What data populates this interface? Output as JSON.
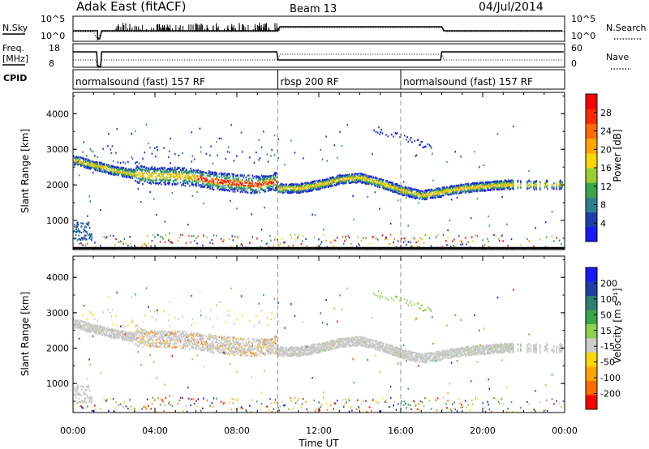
{
  "header": {
    "station": "Adak East (fitACF)",
    "beam": "Beam 13",
    "date": "04/Jul/2014"
  },
  "top_panels": {
    "nsky_label": "N.Sky",
    "nsky_ticks": [
      "10^5",
      "10^0"
    ],
    "nsearch_label": "N.Search",
    "nsearch_ticks": [
      "10^5",
      "10^0"
    ],
    "freq_label": "Freq.",
    "freq_unit": "[MHz]",
    "freq_ticks": [
      "18",
      "8"
    ],
    "nave_label": "Nave",
    "nave_ticks": [
      "60",
      "0"
    ],
    "cpid_label": "CPID"
  },
  "cpid_segments": [
    {
      "label": "normalsound (fast) 157 RF",
      "start_hour": 0,
      "end_hour": 10
    },
    {
      "label": "rbsp 200 RF",
      "start_hour": 10,
      "end_hour": 16
    },
    {
      "label": "normalsound (fast) 157 RF",
      "start_hour": 16,
      "end_hour": 24
    }
  ],
  "chart_data": [
    {
      "type": "heatmap",
      "name": "power",
      "ylabel": "Slant Range [km]",
      "ylim": [
        180,
        4600
      ],
      "yticks": [
        "1000",
        "2000",
        "3000",
        "4000"
      ],
      "xlim": [
        0,
        24
      ],
      "colorbar": {
        "label": "Power [dB]",
        "ticks": [
          "4",
          "8",
          "12",
          "16",
          "20",
          "24",
          "28"
        ],
        "colors": [
          "#1a1aff",
          "#1f3fa8",
          "#2e7f8f",
          "#3aa64a",
          "#9acd32",
          "#ffd700",
          "#ffa500",
          "#ff6a00",
          "#ff2a00",
          "#ff0000"
        ]
      },
      "main_band": [
        [
          0,
          2700
        ],
        [
          1,
          2550
        ],
        [
          2,
          2400
        ],
        [
          3,
          2300
        ],
        [
          4,
          2250
        ],
        [
          5,
          2250
        ],
        [
          6,
          2200
        ],
        [
          7,
          2100
        ],
        [
          8,
          2050
        ],
        [
          9,
          2000
        ],
        [
          9.9,
          2100
        ],
        [
          10,
          1900
        ],
        [
          11,
          1900
        ],
        [
          12,
          2000
        ],
        [
          13,
          2150
        ],
        [
          14,
          2200
        ],
        [
          15,
          2050
        ],
        [
          16,
          1850
        ],
        [
          17,
          1700
        ],
        [
          18,
          1800
        ],
        [
          19,
          1900
        ],
        [
          20,
          1950
        ],
        [
          21,
          2000
        ]
      ]
    },
    {
      "type": "heatmap",
      "name": "velocity",
      "ylabel": "Slant Range [km]",
      "ylim": [
        180,
        4600
      ],
      "yticks": [
        "1000",
        "2000",
        "3000",
        "4000"
      ],
      "xlim": [
        0,
        24
      ],
      "colorbar": {
        "label": "Velocity [m s⁻¹]",
        "ticks": [
          "200",
          "100",
          "50",
          "15",
          "-15",
          "-50",
          "-100",
          "-200"
        ],
        "colors": [
          "#1a1aff",
          "#1f3fa8",
          "#2e7f6f",
          "#3aa64a",
          "#8fd14f",
          "#cccccc",
          "#ffd700",
          "#ffa500",
          "#ff6a00",
          "#ff0000"
        ]
      }
    }
  ],
  "xaxis": {
    "ticks": [
      "00:00",
      "04:00",
      "08:00",
      "12:00",
      "16:00",
      "20:00",
      "00:00"
    ],
    "tick_hours": [
      0,
      4,
      8,
      12,
      16,
      20,
      24
    ],
    "label": "Time UT"
  }
}
